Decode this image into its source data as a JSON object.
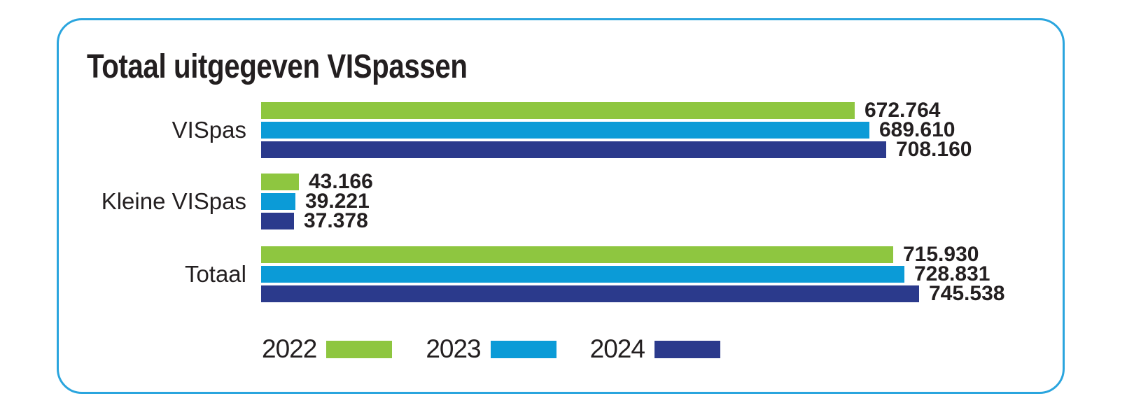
{
  "title": "Totaal uitgegeven VISpassen",
  "frame": {
    "border_color": "#2AA5DE",
    "background": "#FFFFFF"
  },
  "text_color": "#231F20",
  "chart_data": {
    "type": "bar",
    "orientation": "horizontal",
    "title": "Totaal uitgegeven VISpassen",
    "categories": [
      "VISpas",
      "Kleine VISpas",
      "Totaal"
    ],
    "series": [
      {
        "name": "2022",
        "color": "#8EC640",
        "values": [
          672764,
          43166,
          715930
        ]
      },
      {
        "name": "2023",
        "color": "#0B9BD7",
        "values": [
          689610,
          39221,
          728831
        ]
      },
      {
        "name": "2024",
        "color": "#2B3A8C",
        "values": [
          708160,
          37378,
          745538
        ]
      }
    ],
    "value_labels": [
      [
        "672.764",
        "689.610",
        "708.160"
      ],
      [
        "43.166",
        "39.221",
        "37.378"
      ],
      [
        "715.930",
        "728.831",
        "745.538"
      ]
    ],
    "xlim": [
      0,
      745538
    ],
    "grid": false,
    "axes_visible": false,
    "legend_position": "bottom"
  }
}
